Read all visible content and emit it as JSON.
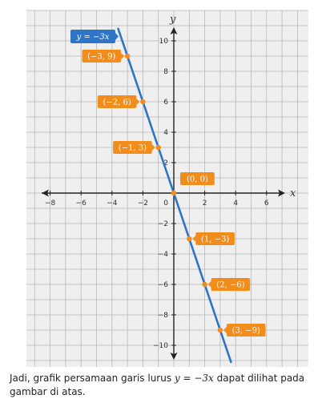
{
  "chart_data": {
    "type": "line",
    "xlabel": "x",
    "ylabel": "y",
    "xlim": [
      -9.5,
      9
    ],
    "ylim": [
      -11,
      12
    ],
    "x_ticks": [
      -8,
      -6,
      -4,
      -2,
      2,
      4,
      6
    ],
    "y_ticks": [
      10,
      8,
      6,
      4,
      2,
      -2,
      -4,
      -6,
      -8,
      -10
    ],
    "origin_label": "0",
    "grid": true,
    "series": [
      {
        "equation_label": "y = −3x",
        "color": "#2e75c6",
        "line": {
          "x": [
            -3.6,
            3.7
          ],
          "y": [
            10.8,
            -11.1
          ]
        }
      }
    ],
    "points": [
      {
        "x": -3,
        "y": 9,
        "label": "(−3, 9)"
      },
      {
        "x": -2,
        "y": 6,
        "label": "(−2, 6)"
      },
      {
        "x": -1,
        "y": 3,
        "label": "(−1, 3)"
      },
      {
        "x": 0,
        "y": 0,
        "label": "(0, 0)"
      },
      {
        "x": 1,
        "y": -3,
        "label": "(1, −3)"
      },
      {
        "x": 2,
        "y": -6,
        "label": "(2, −6)"
      },
      {
        "x": 3,
        "y": -9,
        "label": "(3, −9)"
      }
    ],
    "point_color": "#f28c1a"
  },
  "caption": {
    "before": "Jadi, grafik persamaan garis lurus ",
    "math": "y = −3x",
    "after": " dapat dilihat pada gambar di atas."
  }
}
